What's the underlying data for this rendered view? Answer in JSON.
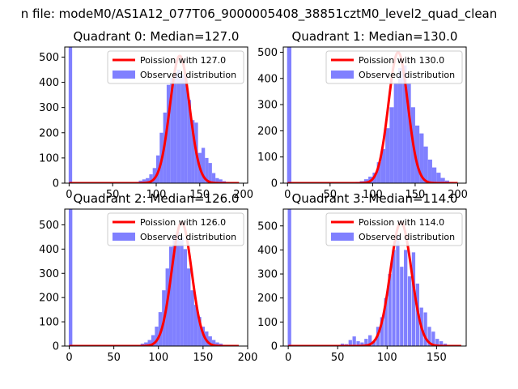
{
  "suptitle": "n file: modeM0/AS1A12_077T06_9000005408_38851cztM0_level2_quad_clean",
  "legend": {
    "observed_label": "Observed distribution"
  },
  "colors": {
    "poisson": "#ff0000",
    "observed": "#8080ff"
  },
  "chart_data": [
    {
      "type": "bar",
      "title": "Quadrant 0: Median=127.0",
      "legend_poisson": "Poission with 127.0",
      "legend_position": "top-right",
      "xlim": [
        -5,
        205
      ],
      "ylim": [
        0,
        540
      ],
      "xticks": [
        0,
        50,
        100,
        150,
        200
      ],
      "xtick_labels": [
        "0",
        "50",
        "100",
        "150",
        "200"
      ],
      "yticks": [
        0,
        100,
        200,
        300,
        400,
        500
      ],
      "bin_width": 4,
      "spike": {
        "x": 0,
        "value": 540
      },
      "bins_x": [
        76,
        80,
        84,
        88,
        92,
        96,
        100,
        104,
        108,
        112,
        116,
        120,
        124,
        128,
        132,
        136,
        140,
        144,
        148,
        152,
        156,
        160,
        164,
        168,
        172,
        176,
        180,
        184,
        188
      ],
      "bins_y": [
        5,
        10,
        15,
        20,
        35,
        60,
        110,
        200,
        280,
        390,
        420,
        440,
        450,
        430,
        420,
        330,
        250,
        240,
        120,
        140,
        100,
        80,
        40,
        20,
        15,
        8,
        5,
        3,
        2
      ],
      "poisson_mean": 127.0,
      "poisson_peak": 505,
      "poisson_x_range": [
        0,
        195
      ]
    },
    {
      "type": "bar",
      "title": "Quadrant 1: Median=130.0",
      "legend_poisson": "Poission with 130.0",
      "legend_position": "top-right",
      "xlim": [
        -5,
        210
      ],
      "ylim": [
        0,
        520
      ],
      "xticks": [
        0,
        50,
        100,
        150,
        200
      ],
      "xtick_labels": [
        "0",
        "50",
        "100",
        "150",
        "200"
      ],
      "yticks": [
        0,
        100,
        200,
        300,
        400,
        500
      ],
      "bin_width": 5,
      "spike": {
        "x": 0,
        "value": 520
      },
      "bins_x": [
        70,
        75,
        80,
        85,
        90,
        95,
        100,
        105,
        110,
        115,
        120,
        125,
        130,
        135,
        140,
        145,
        150,
        155,
        160,
        165,
        170,
        175,
        180,
        185,
        190,
        195
      ],
      "bins_y": [
        2,
        3,
        5,
        8,
        15,
        25,
        40,
        80,
        130,
        210,
        290,
        380,
        440,
        450,
        380,
        290,
        220,
        190,
        140,
        90,
        60,
        40,
        20,
        10,
        5,
        3
      ],
      "poisson_mean": 130.0,
      "poisson_peak": 500,
      "poisson_x_range": [
        0,
        200
      ]
    },
    {
      "type": "bar",
      "title": "Quadrant 2: Median=126.0",
      "legend_poisson": "Poission with 126.0",
      "legend_position": "top-right",
      "xlim": [
        -5,
        200
      ],
      "ylim": [
        0,
        565
      ],
      "xticks": [
        0,
        50,
        100,
        150,
        200
      ],
      "xtick_labels": [
        "0",
        "50",
        "100",
        "150",
        "200"
      ],
      "yticks": [
        0,
        100,
        200,
        300,
        400,
        500
      ],
      "bin_width": 4,
      "spike": {
        "x": 0,
        "value": 565
      },
      "bins_x": [
        72,
        76,
        80,
        84,
        88,
        92,
        96,
        100,
        104,
        108,
        112,
        116,
        120,
        124,
        128,
        132,
        136,
        140,
        144,
        148,
        152,
        156,
        160,
        164,
        168,
        172,
        176,
        180,
        184
      ],
      "bins_y": [
        3,
        5,
        10,
        15,
        25,
        45,
        80,
        140,
        230,
        320,
        410,
        460,
        470,
        450,
        400,
        320,
        230,
        170,
        120,
        80,
        60,
        40,
        25,
        15,
        10,
        5,
        3,
        2,
        1
      ],
      "poisson_mean": 126.0,
      "poisson_peak": 510,
      "poisson_x_range": [
        0,
        190
      ]
    },
    {
      "type": "bar",
      "title": "Quadrant 3: Median=114.0",
      "legend_poisson": "Poission with 114.0",
      "legend_position": "top-right",
      "xlim": [
        -5,
        180
      ],
      "ylim": [
        0,
        570
      ],
      "xticks": [
        0,
        50,
        100,
        150
      ],
      "xtick_labels": [
        "0",
        "50",
        "100",
        "150"
      ],
      "yticks": [
        0,
        100,
        200,
        300,
        400,
        500
      ],
      "bin_width": 3.5,
      "spike": {
        "x": 0,
        "value": 570
      },
      "bins_x": [
        45,
        49,
        53,
        57,
        61,
        65,
        69,
        73,
        77,
        81,
        85,
        89,
        93,
        97,
        101,
        105,
        109,
        113,
        117,
        121,
        125,
        129,
        133,
        137,
        141,
        145,
        149,
        153,
        157
      ],
      "bins_y": [
        2,
        5,
        10,
        8,
        25,
        40,
        20,
        15,
        30,
        45,
        20,
        80,
        120,
        200,
        300,
        400,
        460,
        330,
        400,
        290,
        390,
        260,
        160,
        140,
        80,
        60,
        30,
        20,
        10
      ],
      "poisson_mean": 114.0,
      "poisson_peak": 515,
      "poisson_x_range": [
        0,
        175
      ]
    }
  ]
}
